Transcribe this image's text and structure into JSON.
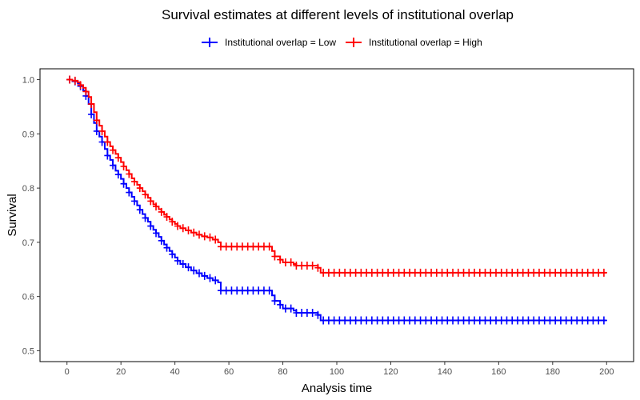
{
  "chart_data": {
    "type": "line",
    "title": "Survival estimates at different levels of institutional overlap",
    "xlabel": "Analysis time",
    "ylabel": "Survival",
    "xlim": [
      -10,
      210
    ],
    "ylim": [
      0.48,
      1.02
    ],
    "xticks": [
      0,
      20,
      40,
      60,
      80,
      100,
      120,
      140,
      160,
      180,
      200
    ],
    "yticks": [
      0.5,
      0.6,
      0.7,
      0.8,
      0.9,
      1.0
    ],
    "ytick_labels": [
      "0.5",
      "0.6",
      "0.7",
      "0.8",
      "0.9",
      "1.0"
    ],
    "grid": false,
    "legend_position": "top",
    "series": [
      {
        "name": "Institutional overlap = Low",
        "color": "#0000ff",
        "x": [
          0,
          2,
          4,
          5,
          6,
          7,
          8,
          9,
          10,
          11,
          12,
          13,
          14,
          15,
          16,
          17,
          18,
          19,
          20,
          21,
          22,
          23,
          24,
          25,
          26,
          27,
          28,
          29,
          30,
          31,
          32,
          33,
          34,
          35,
          36,
          37,
          38,
          39,
          40,
          41,
          42,
          44,
          46,
          48,
          50,
          52,
          54,
          56,
          57,
          76,
          77,
          79,
          80,
          84,
          85,
          93,
          94,
          200
        ],
        "y": [
          1.0,
          0.997,
          0.993,
          0.988,
          0.98,
          0.97,
          0.955,
          0.936,
          0.92,
          0.905,
          0.895,
          0.885,
          0.872,
          0.86,
          0.852,
          0.842,
          0.832,
          0.825,
          0.817,
          0.808,
          0.8,
          0.792,
          0.784,
          0.776,
          0.768,
          0.76,
          0.752,
          0.745,
          0.738,
          0.73,
          0.723,
          0.717,
          0.71,
          0.703,
          0.696,
          0.69,
          0.684,
          0.678,
          0.672,
          0.666,
          0.66,
          0.654,
          0.648,
          0.643,
          0.638,
          0.634,
          0.63,
          0.626,
          0.611,
          0.602,
          0.592,
          0.585,
          0.578,
          0.574,
          0.57,
          0.566,
          0.556,
          0.556
        ]
      },
      {
        "name": "Institutional overlap = High",
        "color": "#ff0000",
        "x": [
          0,
          2,
          4,
          5,
          6,
          7,
          8,
          9,
          10,
          11,
          12,
          13,
          14,
          15,
          16,
          17,
          18,
          19,
          20,
          21,
          22,
          23,
          24,
          25,
          26,
          27,
          28,
          29,
          30,
          31,
          32,
          33,
          34,
          35,
          36,
          37,
          38,
          39,
          40,
          41,
          42,
          44,
          46,
          48,
          50,
          52,
          54,
          56,
          57,
          76,
          77,
          79,
          80,
          84,
          85,
          93,
          94,
          200
        ],
        "y": [
          1.0,
          0.998,
          0.995,
          0.99,
          0.985,
          0.978,
          0.968,
          0.955,
          0.94,
          0.925,
          0.915,
          0.905,
          0.895,
          0.885,
          0.877,
          0.87,
          0.863,
          0.856,
          0.848,
          0.84,
          0.833,
          0.826,
          0.818,
          0.812,
          0.806,
          0.8,
          0.794,
          0.788,
          0.782,
          0.776,
          0.77,
          0.766,
          0.761,
          0.756,
          0.751,
          0.747,
          0.742,
          0.738,
          0.734,
          0.73,
          0.726,
          0.722,
          0.718,
          0.714,
          0.711,
          0.709,
          0.705,
          0.7,
          0.692,
          0.684,
          0.674,
          0.668,
          0.663,
          0.66,
          0.657,
          0.653,
          0.644,
          0.644
        ]
      }
    ]
  }
}
